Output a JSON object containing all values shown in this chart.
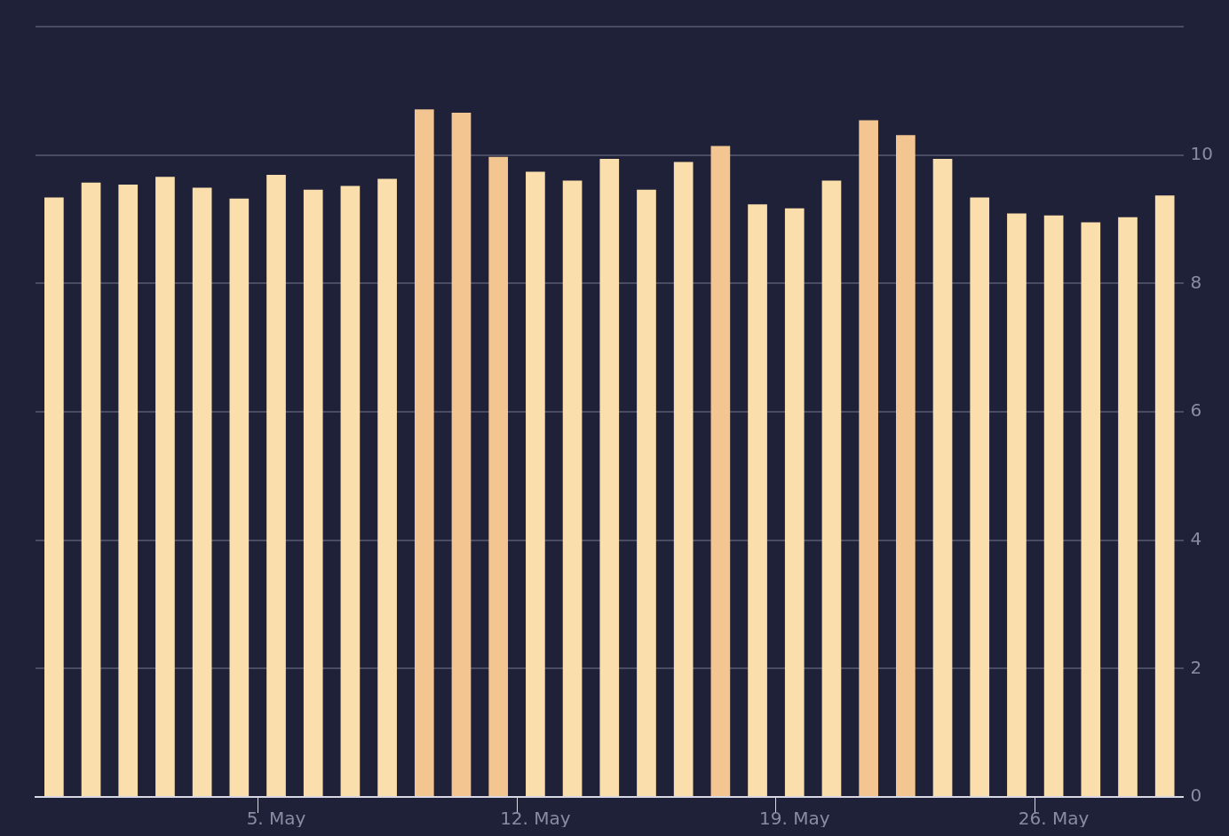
{
  "chart_data": {
    "type": "bar",
    "categories": [
      null,
      null,
      null,
      null,
      null,
      null,
      "5. May",
      null,
      null,
      null,
      null,
      null,
      null,
      "12. May",
      null,
      null,
      null,
      null,
      null,
      null,
      "19. May",
      null,
      null,
      null,
      null,
      null,
      null,
      "26. May",
      null,
      null,
      null
    ],
    "values": [
      9.34,
      9.57,
      9.54,
      9.66,
      9.49,
      9.32,
      9.69,
      9.46,
      9.52,
      9.63,
      10.71,
      10.66,
      9.97,
      9.74,
      9.6,
      9.94,
      9.46,
      9.89,
      10.14,
      9.23,
      9.17,
      9.6,
      10.54,
      10.31,
      9.94,
      9.34,
      9.09,
      9.06,
      8.95,
      9.03,
      9.37
    ],
    "colors": [
      "#fadeab",
      "#fadeab",
      "#fadeab",
      "#fadeab",
      "#fadeab",
      "#fadeab",
      "#fadeab",
      "#fadeab",
      "#fadeab",
      "#fadeab",
      "#f2c591",
      "#f2c591",
      "#f2c591",
      "#fadeab",
      "#fadeab",
      "#fadeab",
      "#fadeab",
      "#fadeab",
      "#f2c591",
      "#fadeab",
      "#fadeab",
      "#fadeab",
      "#f2c591",
      "#f2c591",
      "#fadeab",
      "#fadeab",
      "#fadeab",
      "#fadeab",
      "#fadeab",
      "#fadeab",
      "#fadeab"
    ],
    "ylim": [
      0,
      12
    ],
    "yticks": [
      0,
      2,
      4,
      6,
      8,
      10,
      {
        "value": 12,
        "label": null
      }
    ],
    "grid": "y",
    "legend": false
  }
}
